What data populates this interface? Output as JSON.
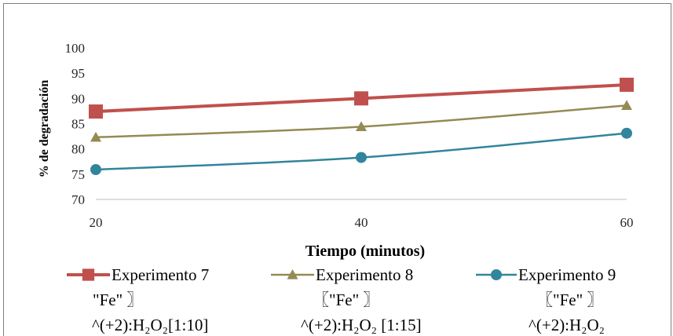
{
  "chart_data": {
    "type": "line",
    "x": [
      20,
      40,
      60
    ],
    "xlabel": "Tiempo (minutos)",
    "ylabel": "% de degradación",
    "ylim": [
      70,
      100
    ],
    "yticks": [
      70,
      75,
      80,
      85,
      90,
      95,
      100
    ],
    "xtick_labels": [
      "20",
      "40",
      "60"
    ],
    "grid": false,
    "legend_position": "bottom",
    "series": [
      {
        "name": "Experimento 7",
        "legend_lines": [
          "Experimento 7",
          "\"Fe\" 〗",
          "^(+2):H₂O₂[1:10]"
        ],
        "values": [
          87.4,
          90.0,
          92.7
        ],
        "color": "#c0504d",
        "marker": "square"
      },
      {
        "name": "Experimento 8",
        "legend_lines": [
          "Experimento 8",
          "〖\"Fe\" 〗",
          "^(+2):H₂O₂ [1:15]"
        ],
        "values": [
          82.3,
          84.4,
          88.6
        ],
        "color": "#948a54",
        "marker": "triangle"
      },
      {
        "name": "Experimento 9",
        "legend_lines": [
          "Experimento 9",
          "〖\"Fe\" 〗",
          "^(+2):H₂O₂"
        ],
        "values": [
          75.9,
          78.3,
          83.1
        ],
        "color": "#31859c",
        "marker": "circle"
      }
    ]
  }
}
